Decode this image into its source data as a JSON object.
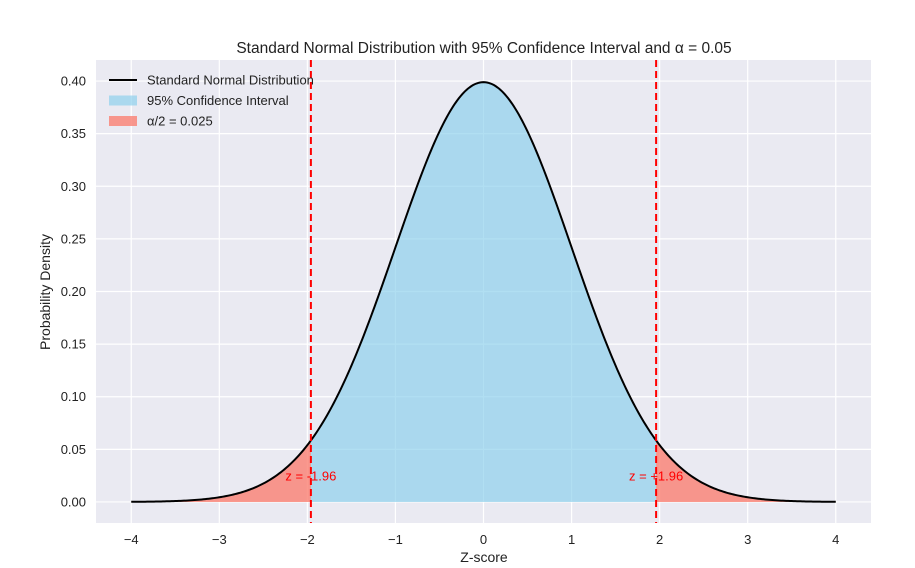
{
  "chart_data": {
    "type": "area",
    "title": "Standard Normal Distribution with 95% Confidence Interval and α = 0.05",
    "xlabel": "Z-score",
    "ylabel": "Probability Density",
    "xlim": [
      -4.4,
      4.4
    ],
    "ylim": [
      -0.02,
      0.42
    ],
    "curve_range": [
      -4,
      4
    ],
    "xticks": [
      -4,
      -3,
      -2,
      -1,
      0,
      1,
      2,
      3,
      4
    ],
    "xtick_labels": [
      "−4",
      "−3",
      "−2",
      "−1",
      "0",
      "1",
      "2",
      "3",
      "4"
    ],
    "yticks": [
      0.0,
      0.05,
      0.1,
      0.15,
      0.2,
      0.25,
      0.3,
      0.35,
      0.4
    ],
    "ytick_labels": [
      "0.00",
      "0.05",
      "0.10",
      "0.15",
      "0.20",
      "0.25",
      "0.30",
      "0.35",
      "0.40"
    ],
    "critical_values": [
      -1.96,
      1.96
    ],
    "series": [
      {
        "name": "Standard Normal Distribution",
        "kind": "line",
        "function": "standard_normal_pdf",
        "mean": 0,
        "std": 1,
        "color": "#000000"
      },
      {
        "name": "95% Confidence Interval",
        "kind": "fill",
        "from": -1.96,
        "to": 1.96,
        "color": "#87ceeb"
      },
      {
        "name": "α/2 = 0.025",
        "kind": "fill",
        "regions": [
          [
            -4,
            -1.96
          ],
          [
            1.96,
            4
          ]
        ],
        "color": "#fa8072"
      }
    ],
    "annotations": [
      {
        "text": "z = -1.96",
        "x": -1.96,
        "y": 0.025,
        "color": "#ff0000"
      },
      {
        "text": "z = +1.96",
        "x": 1.96,
        "y": 0.025,
        "color": "#ff0000"
      }
    ],
    "legend": {
      "position": "upper-left",
      "entries": [
        "Standard Normal Distribution",
        "95% Confidence Interval",
        "α/2 = 0.025"
      ]
    },
    "colors": {
      "background": "#eaeaf2",
      "grid": "#ffffff",
      "curve": "#000000",
      "ci_fill": "#87ceeb",
      "tail_fill": "#fa8072",
      "critical_line": "#ff0000"
    }
  }
}
